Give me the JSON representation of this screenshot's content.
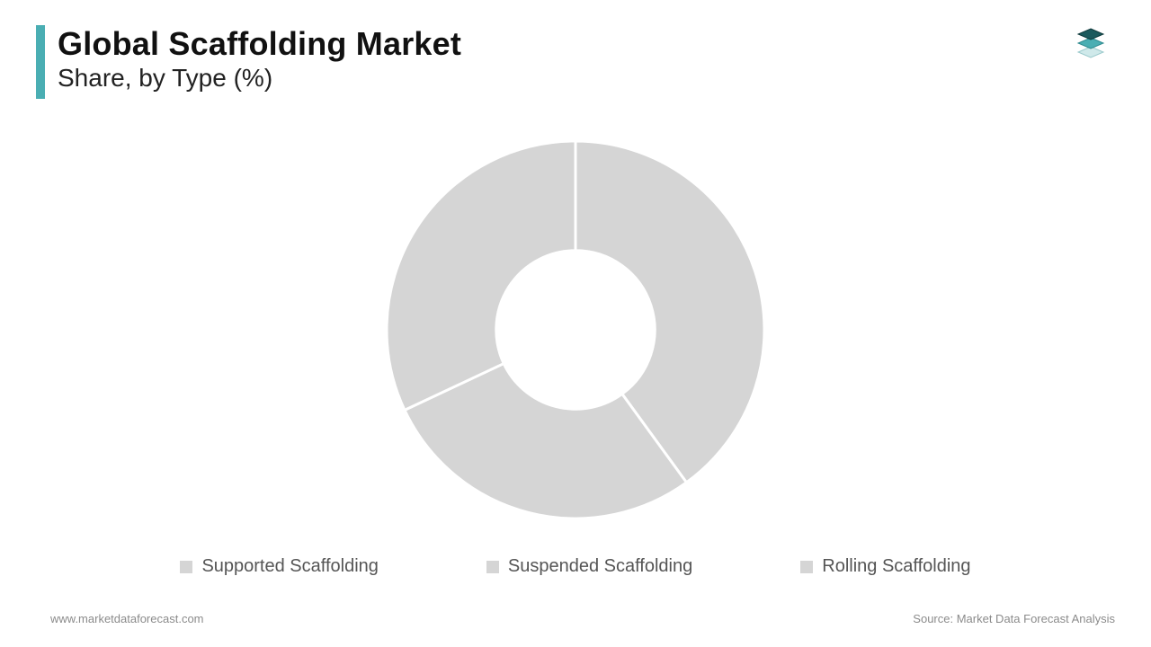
{
  "header": {
    "title": "Global Scaffolding Market",
    "subtitle": "Share, by Type (%)",
    "accent_color": "#4aaeb3"
  },
  "logo": {
    "layers": [
      {
        "fill": "#1c5a5d",
        "stroke": "#0f3a3c"
      },
      {
        "fill": "#4aaeb3",
        "stroke": "#2e8a8f"
      },
      {
        "fill": "#cfe9ea",
        "stroke": "#9ac9cb"
      }
    ]
  },
  "chart": {
    "type": "donut",
    "inner_radius_pct": 42,
    "outer_radius_pct": 100,
    "gap_stroke": "#ffffff",
    "gap_stroke_width": 3,
    "background_color": "#ffffff",
    "slices": [
      {
        "label": "Supported Scaffolding",
        "value": 40,
        "color": "#d5d5d5"
      },
      {
        "label": "Suspended Scaffolding",
        "value": 28,
        "color": "#d5d5d5"
      },
      {
        "label": "Rolling Scaffolding",
        "value": 32,
        "color": "#d5d5d5"
      }
    ],
    "start_angle_deg": -90
  },
  "legend": {
    "items": [
      {
        "label": "Supported Scaffolding",
        "color": "#d5d5d5"
      },
      {
        "label": "Suspended Scaffolding",
        "color": "#d5d5d5"
      },
      {
        "label": "Rolling Scaffolding",
        "color": "#d5d5d5"
      }
    ],
    "label_color": "#555555",
    "label_fontsize": 20
  },
  "footer": {
    "left": "www.marketdataforecast.com",
    "right": "Source: Market Data Forecast Analysis",
    "color": "#8b8b8b",
    "fontsize": 13
  }
}
